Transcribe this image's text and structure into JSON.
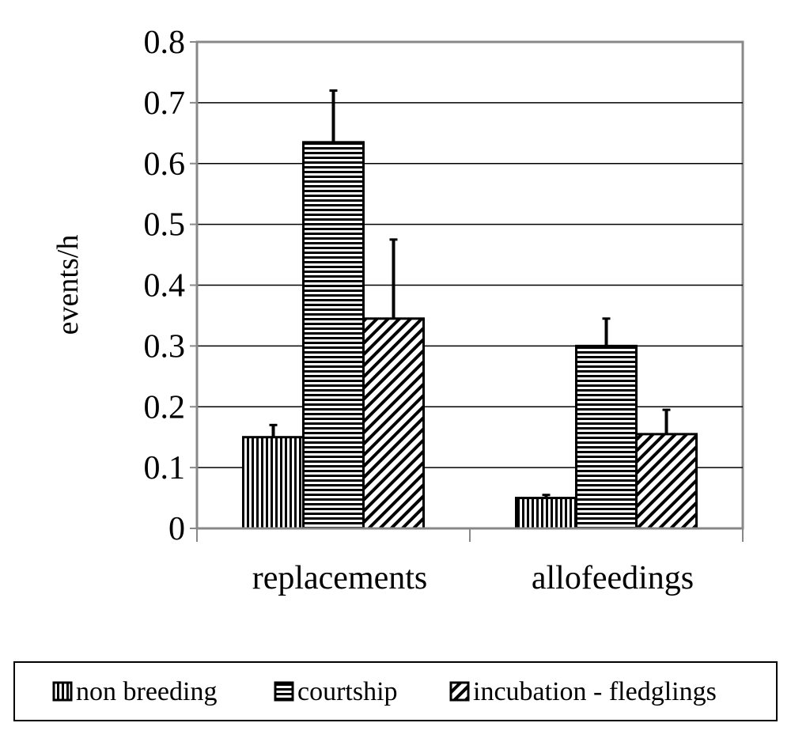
{
  "chart_data": {
    "type": "bar",
    "title": "",
    "xlabel": "",
    "ylabel": "events/h",
    "ylim": [
      0,
      0.8
    ],
    "yticks": [
      "0",
      "0.1",
      "0.2",
      "0.3",
      "0.4",
      "0.5",
      "0.6",
      "0.7",
      "0.8"
    ],
    "grid": true,
    "legend_position": "bottom",
    "categories": [
      "replacements",
      "allofeedings"
    ],
    "series": [
      {
        "name": "non breeding",
        "pattern": "vertical-lines",
        "values": [
          0.15,
          0.05
        ],
        "errors": [
          0.02,
          0.005
        ]
      },
      {
        "name": "courtship",
        "pattern": "horizontal-lines",
        "values": [
          0.635,
          0.3
        ],
        "errors": [
          0.085,
          0.045
        ]
      },
      {
        "name": "incubation - fledglings",
        "pattern": "diagonal-lines",
        "values": [
          0.345,
          0.155
        ],
        "errors": [
          0.13,
          0.04
        ]
      }
    ],
    "colors": {
      "bar_stroke": "#000000",
      "bar_fill": "#ffffff",
      "grid": "#000000",
      "plot_border": "#888888"
    }
  }
}
